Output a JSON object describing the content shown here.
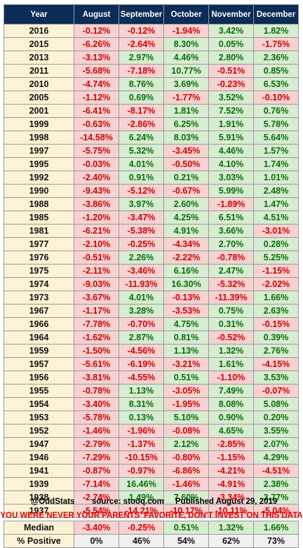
{
  "chart_data": {
    "type": "table",
    "columns": [
      "Year",
      "August",
      "September",
      "October",
      "November",
      "December"
    ],
    "rows": [
      [
        "2016",
        -0.12,
        -0.12,
        -1.94,
        3.42,
        1.82
      ],
      [
        "2015",
        -6.26,
        -2.64,
        8.3,
        0.05,
        -1.75
      ],
      [
        "2013",
        -3.13,
        2.97,
        4.46,
        2.8,
        2.36
      ],
      [
        "2011",
        -5.68,
        -7.18,
        10.77,
        -0.51,
        0.85
      ],
      [
        "2010",
        -4.74,
        8.76,
        3.69,
        -0.23,
        6.53
      ],
      [
        "2005",
        -1.12,
        0.69,
        -1.77,
        3.52,
        -0.1
      ],
      [
        "2001",
        -6.41,
        -8.17,
        1.81,
        7.52,
        0.76
      ],
      [
        "1999",
        -0.63,
        -2.86,
        6.25,
        1.91,
        5.78
      ],
      [
        "1998",
        -14.58,
        6.24,
        8.03,
        5.91,
        5.64
      ],
      [
        "1997",
        -5.75,
        5.32,
        -3.45,
        4.46,
        1.57
      ],
      [
        "1995",
        -0.03,
        4.01,
        -0.5,
        4.1,
        1.74
      ],
      [
        "1992",
        -2.4,
        0.91,
        0.21,
        3.03,
        1.01
      ],
      [
        "1990",
        -9.43,
        -5.12,
        -0.67,
        5.99,
        2.48
      ],
      [
        "1988",
        -3.86,
        3.97,
        2.6,
        -1.89,
        1.47
      ],
      [
        "1985",
        -1.2,
        -3.47,
        4.25,
        6.51,
        4.51
      ],
      [
        "1981",
        -6.21,
        -5.38,
        4.91,
        3.66,
        -3.01
      ],
      [
        "1977",
        -2.1,
        -0.25,
        -4.34,
        2.7,
        0.28
      ],
      [
        "1976",
        -0.51,
        2.26,
        -2.22,
        -0.78,
        5.25
      ],
      [
        "1975",
        -2.11,
        -3.46,
        6.16,
        2.47,
        -1.15
      ],
      [
        "1974",
        -9.03,
        -11.93,
        16.3,
        -5.32,
        -2.02
      ],
      [
        "1973",
        -3.67,
        4.01,
        -0.13,
        -11.39,
        1.66
      ],
      [
        "1967",
        -1.17,
        3.28,
        -3.53,
        0.75,
        2.63
      ],
      [
        "1966",
        -7.78,
        -0.7,
        4.75,
        0.31,
        -0.15
      ],
      [
        "1964",
        -1.62,
        2.87,
        0.81,
        -0.52,
        0.39
      ],
      [
        "1959",
        -1.5,
        -4.56,
        1.13,
        1.32,
        2.76
      ],
      [
        "1957",
        -5.61,
        -6.19,
        -3.21,
        1.61,
        -4.15
      ],
      [
        "1956",
        -3.81,
        -4.55,
        0.51,
        -1.1,
        3.53
      ],
      [
        "1955",
        -0.78,
        1.13,
        -3.05,
        7.49,
        -0.07
      ],
      [
        "1954",
        -3.4,
        8.31,
        -1.95,
        8.08,
        5.08
      ],
      [
        "1953",
        -5.78,
        0.13,
        5.1,
        0.9,
        0.2
      ],
      [
        "1952",
        -1.46,
        -1.96,
        -0.08,
        4.65,
        3.55
      ],
      [
        "1947",
        -2.79,
        -1.37,
        2.12,
        -2.85,
        2.07
      ],
      [
        "1946",
        -7.29,
        -10.15,
        -0.8,
        -1.15,
        4.29
      ],
      [
        "1941",
        -0.87,
        -0.97,
        -6.86,
        -4.21,
        -4.51
      ],
      [
        "1939",
        -7.14,
        16.46,
        -1.46,
        -4.91,
        2.38
      ],
      [
        "1938",
        -2.74,
        1.49,
        7.6,
        -3.34,
        3.77
      ],
      [
        "1937",
        -5.54,
        -14.21,
        -10.17,
        -10.11,
        -5.04
      ]
    ],
    "summary": [
      {
        "label": "Median",
        "values": [
          -3.4,
          -0.25,
          0.51,
          1.32,
          1.66
        ],
        "unit": "%"
      },
      {
        "label": "% Positive",
        "values": [
          0,
          46,
          54,
          62,
          73
        ],
        "unit": "%"
      }
    ]
  },
  "colors": {
    "header_bg": "#0b2c57",
    "year_bg": "#fdf3d4",
    "positive_bg": "#d7ecd0",
    "positive_text": "#0b6d0b",
    "negative_bg": "#f6d2d2",
    "negative_text": "#d40000",
    "warning_text": "#e30000"
  },
  "footer": {
    "handle": "@OddStats",
    "source": "source: stooq.com",
    "published": "Published August 29, 2019",
    "warning": "YOU WERE NEVER YOUR PARENTS' FAVORITE, DON'T INVEST ON THIS DATA"
  }
}
